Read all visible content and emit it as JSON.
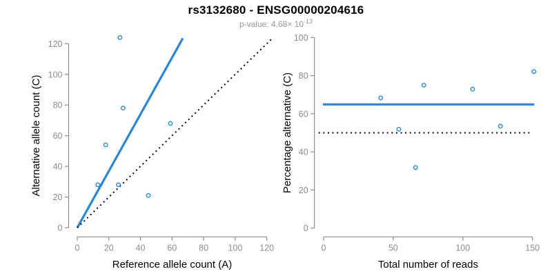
{
  "header": {
    "title": "rs3132680 - ENSG00000204616",
    "subtitle_prefix": "p-value: 4.68× 10",
    "subtitle_exponent": "-13"
  },
  "colors": {
    "accent_blue": "#2287E2",
    "axis_gray": "#8c8c8c",
    "tick_label_gray": "#8c8c8c",
    "subtitle_gray": "#969696",
    "line_black": "#000000",
    "background": "#ffffff"
  },
  "chart_data": [
    {
      "id": "allele-count-scatter",
      "type": "scatter",
      "title": "",
      "xlabel": "Reference allele count (A)",
      "ylabel": "Alternative allele count (C)",
      "xlim": [
        0,
        120
      ],
      "ylim": [
        0,
        120
      ],
      "xticks": [
        0,
        20,
        40,
        60,
        80,
        100,
        120
      ],
      "yticks": [
        0,
        20,
        40,
        60,
        80,
        100,
        120
      ],
      "grid": false,
      "legend": false,
      "points": [
        {
          "x": 27,
          "y": 124
        },
        {
          "x": 29,
          "y": 78
        },
        {
          "x": 59,
          "y": 68
        },
        {
          "x": 18,
          "y": 54
        },
        {
          "x": 13,
          "y": 28
        },
        {
          "x": 26,
          "y": 28
        },
        {
          "x": 45,
          "y": 21
        }
      ],
      "lines": [
        {
          "name": "fitted-ratio-line",
          "style": "solid",
          "color": "#2287E2",
          "slope": 1.848,
          "intercept": 0,
          "from": [
            0,
            0
          ],
          "to": [
            66.8,
            123.5
          ]
        },
        {
          "name": "identity-line",
          "style": "dotted",
          "color": "#000000",
          "slope": 1,
          "intercept": 0,
          "from": [
            0,
            0
          ],
          "to": [
            123,
            123
          ]
        }
      ]
    },
    {
      "id": "percentage-reads-scatter",
      "type": "scatter",
      "title": "",
      "xlabel": "Total number of reads",
      "ylabel": "Percentage alternative (C)",
      "xlim": [
        0,
        150
      ],
      "ylim": [
        0,
        100
      ],
      "xticks": [
        0,
        50,
        100,
        150
      ],
      "yticks": [
        0,
        20,
        40,
        60,
        80,
        100
      ],
      "grid": false,
      "legend": false,
      "points": [
        {
          "x": 41,
          "y": 68.3
        },
        {
          "x": 72,
          "y": 75.0
        },
        {
          "x": 107,
          "y": 72.9
        },
        {
          "x": 151,
          "y": 82.1
        },
        {
          "x": 54,
          "y": 51.9
        },
        {
          "x": 127,
          "y": 53.5
        },
        {
          "x": 66,
          "y": 31.8
        }
      ],
      "lines": [
        {
          "name": "mean-percentage-line",
          "style": "solid",
          "color": "#2287E2",
          "value": 64.9,
          "from": [
            -0.5,
            64.9
          ],
          "to": [
            151.3,
            64.9
          ]
        },
        {
          "name": "fifty-percent-line",
          "style": "dotted",
          "color": "#000000",
          "value": 50,
          "from": [
            -3.6,
            50
          ],
          "to": [
            148.2,
            50
          ]
        }
      ]
    }
  ]
}
